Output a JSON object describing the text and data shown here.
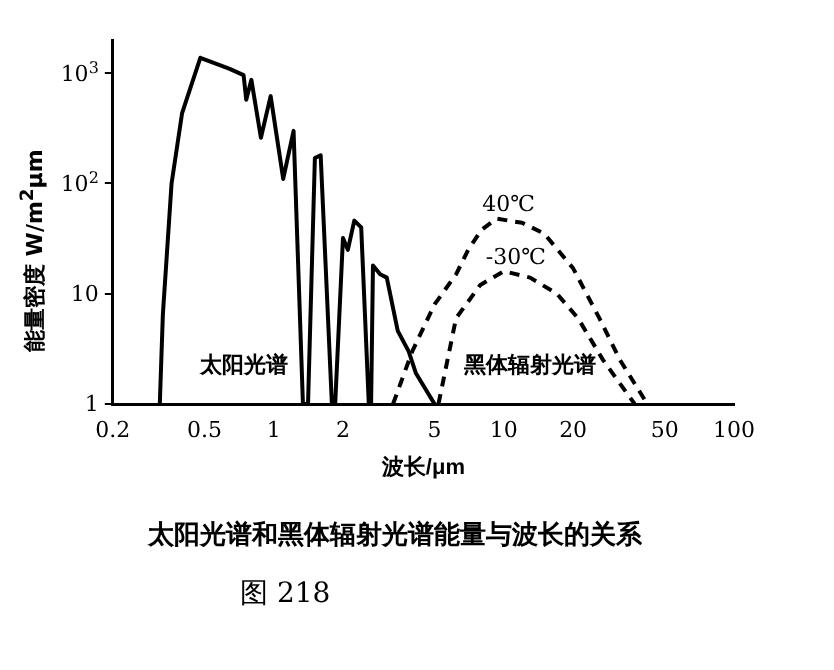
{
  "chart_data": {
    "type": "line",
    "title": "太阳光谱和黑体辐射光谱能量与波长的关系",
    "xlabel": "波长/μm",
    "ylabel": "能量密度 W/m$^{2}$μm",
    "log": "xy",
    "grid": false,
    "legend": false,
    "marker": "none",
    "xlim": [
      0.2,
      100
    ],
    "xticks": [
      0.2,
      0.5,
      1,
      2,
      5,
      10,
      20,
      50,
      100
    ],
    "ylim": [
      1,
      2000
    ],
    "yticks": [
      1,
      10,
      {
        "value": 100,
        "label": "10$^{2}$"
      },
      {
        "value": 1000,
        "label": "10$^{3}$"
      }
    ],
    "series": [
      {
        "color": "#000000",
        "line_style": "solid",
        "x": [
          0.32,
          0.33,
          0.36,
          0.4,
          0.48,
          0.64,
          0.74,
          0.76,
          0.8,
          0.88,
          0.97,
          1.1,
          1.22,
          1.34,
          1.41,
          1.51,
          1.6,
          1.79,
          1.85,
          2.0,
          2.1,
          2.24,
          2.4,
          2.59,
          2.65,
          2.7,
          2.9,
          3.1,
          3.46,
          3.86,
          4.15,
          5.0
        ],
        "values": [
          1,
          6.5,
          100,
          435,
          1380,
          1100,
          960,
          575,
          870,
          260,
          620,
          110,
          300,
          1,
          1,
          170,
          180,
          1,
          1,
          32,
          25,
          46,
          40,
          1,
          1,
          18,
          15,
          14,
          4.6,
          3,
          1.9,
          1
        ]
      },
      {
        "name": "40℃",
        "color": "#000000",
        "line_style": "dashed",
        "x": [
          3.3,
          4,
          5,
          6.2,
          7,
          8,
          9.3,
          12,
          15,
          20,
          26,
          32,
          42
        ],
        "values": [
          1,
          3,
          8,
          15,
          25,
          38,
          48,
          44,
          35,
          17,
          6,
          2.5,
          1
        ]
      },
      {
        "name": "-30℃",
        "color": "#000000",
        "line_style": "dashed",
        "x": [
          5.2,
          6.2,
          7.9,
          10,
          13,
          17,
          21,
          27,
          37
        ],
        "values": [
          1,
          6,
          12,
          16,
          14,
          10,
          6,
          2.5,
          1
        ]
      }
    ],
    "annotations": [
      "太阳光谱",
      "黑体辐射光谱",
      "图 218"
    ]
  }
}
